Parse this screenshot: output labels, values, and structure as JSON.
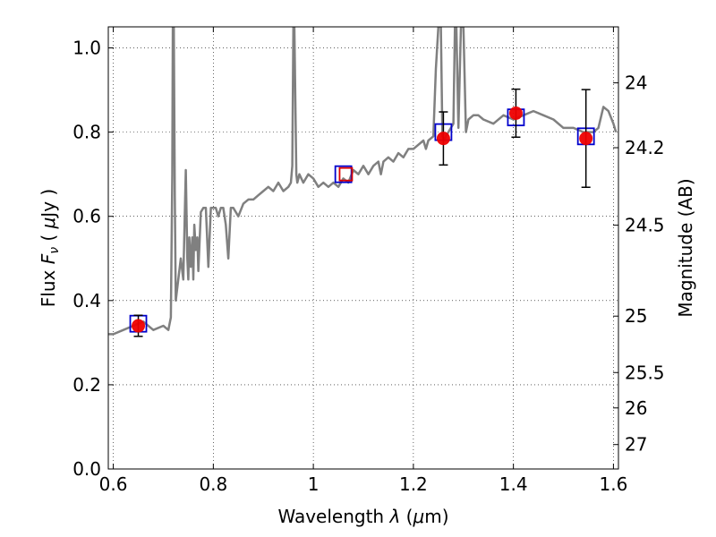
{
  "chart_data": {
    "type": "line",
    "xlabel": "Wavelength  λ (μm)",
    "ylabel": "Flux  F_ν ( μJy )",
    "ylabel_right": "Magnitude (AB)",
    "xlim": [
      0.59,
      1.61
    ],
    "ylim": [
      0.0,
      1.05
    ],
    "grid": true,
    "x_ticks": [
      0.6,
      0.8,
      1.0,
      1.2,
      1.4,
      1.6
    ],
    "x_tick_labels": [
      "0.6",
      "0.8",
      "1",
      "1.2",
      "1.4",
      "1.6"
    ],
    "y_ticks": [
      0.0,
      0.2,
      0.4,
      0.6,
      0.8,
      1.0
    ],
    "y_tick_labels": [
      "0.0",
      "0.2",
      "0.4",
      "0.6",
      "0.8",
      "1.0"
    ],
    "right_ticks": [
      {
        "label": "24",
        "flux": 0.917
      },
      {
        "label": "24.2",
        "flux": 0.763
      },
      {
        "label": "24.5",
        "flux": 0.579
      },
      {
        "label": "25",
        "flux": 0.363
      },
      {
        "label": "25.5",
        "flux": 0.229
      },
      {
        "label": "26",
        "flux": 0.145
      },
      {
        "label": "27",
        "flux": 0.058
      }
    ],
    "template_spectrum": {
      "color": "#808080",
      "x": [
        0.59,
        0.6,
        0.62,
        0.64,
        0.66,
        0.68,
        0.7,
        0.71,
        0.715,
        0.718,
        0.719,
        0.721,
        0.723,
        0.725,
        0.73,
        0.735,
        0.74,
        0.745,
        0.748,
        0.75,
        0.752,
        0.755,
        0.758,
        0.76,
        0.762,
        0.765,
        0.768,
        0.77,
        0.775,
        0.78,
        0.785,
        0.79,
        0.795,
        0.8,
        0.805,
        0.81,
        0.815,
        0.82,
        0.825,
        0.83,
        0.835,
        0.84,
        0.845,
        0.85,
        0.86,
        0.87,
        0.88,
        0.89,
        0.9,
        0.91,
        0.92,
        0.93,
        0.94,
        0.95,
        0.955,
        0.958,
        0.96,
        0.962,
        0.966,
        0.968,
        0.97,
        0.972,
        0.98,
        0.99,
        1.0,
        1.01,
        1.02,
        1.03,
        1.04,
        1.05,
        1.06,
        1.07,
        1.08,
        1.09,
        1.1,
        1.11,
        1.12,
        1.13,
        1.135,
        1.14,
        1.15,
        1.16,
        1.17,
        1.18,
        1.19,
        1.2,
        1.21,
        1.22,
        1.225,
        1.23,
        1.24,
        1.245,
        1.25,
        1.255,
        1.258,
        1.262,
        1.265,
        1.27,
        1.275,
        1.28,
        1.283,
        1.286,
        1.29,
        1.295,
        1.3,
        1.305,
        1.31,
        1.32,
        1.33,
        1.34,
        1.36,
        1.38,
        1.4,
        1.42,
        1.44,
        1.46,
        1.48,
        1.5,
        1.52,
        1.54,
        1.56,
        1.57,
        1.58,
        1.59,
        1.6,
        1.605
      ],
      "y": [
        0.32,
        0.32,
        0.33,
        0.34,
        0.35,
        0.33,
        0.34,
        0.33,
        0.36,
        0.7,
        1.05,
        1.05,
        0.65,
        0.4,
        0.45,
        0.5,
        0.45,
        0.71,
        0.5,
        0.45,
        0.55,
        0.48,
        0.55,
        0.45,
        0.58,
        0.52,
        0.55,
        0.47,
        0.61,
        0.62,
        0.62,
        0.48,
        0.62,
        0.62,
        0.62,
        0.6,
        0.62,
        0.62,
        0.58,
        0.5,
        0.62,
        0.62,
        0.61,
        0.6,
        0.63,
        0.64,
        0.64,
        0.65,
        0.66,
        0.67,
        0.66,
        0.68,
        0.66,
        0.67,
        0.68,
        0.72,
        1.05,
        1.05,
        0.7,
        0.68,
        0.69,
        0.7,
        0.68,
        0.7,
        0.69,
        0.67,
        0.68,
        0.67,
        0.68,
        0.67,
        0.69,
        0.68,
        0.71,
        0.7,
        0.72,
        0.7,
        0.72,
        0.73,
        0.7,
        0.73,
        0.74,
        0.73,
        0.75,
        0.74,
        0.76,
        0.76,
        0.77,
        0.78,
        0.76,
        0.78,
        0.79,
        0.95,
        1.05,
        1.05,
        0.79,
        0.78,
        0.79,
        0.8,
        0.81,
        0.82,
        1.05,
        1.05,
        0.81,
        1.05,
        1.05,
        0.8,
        0.83,
        0.84,
        0.84,
        0.83,
        0.82,
        0.84,
        0.83,
        0.84,
        0.85,
        0.84,
        0.83,
        0.81,
        0.81,
        0.8,
        0.8,
        0.81,
        0.86,
        0.85,
        0.82,
        0.8
      ]
    },
    "series": [
      {
        "name": "",
        "marker": "open-square",
        "color": "#0000cc",
        "x": [
          0.65,
          1.06,
          1.26,
          1.405,
          1.545
        ],
        "y": [
          0.345,
          0.7,
          0.8,
          0.835,
          0.79
        ]
      },
      {
        "name": "",
        "marker": "open-square",
        "color": "#dd0000",
        "x": [
          1.065
        ],
        "y": [
          0.7
        ]
      },
      {
        "name": "",
        "marker": "filled-circle",
        "color": "#ee0000",
        "x": [
          0.65,
          1.26,
          1.405,
          1.545
        ],
        "y": [
          0.34,
          0.785,
          0.845,
          0.785
        ],
        "yerr": [
          0.025,
          0.063,
          0.057,
          0.116
        ]
      }
    ]
  }
}
